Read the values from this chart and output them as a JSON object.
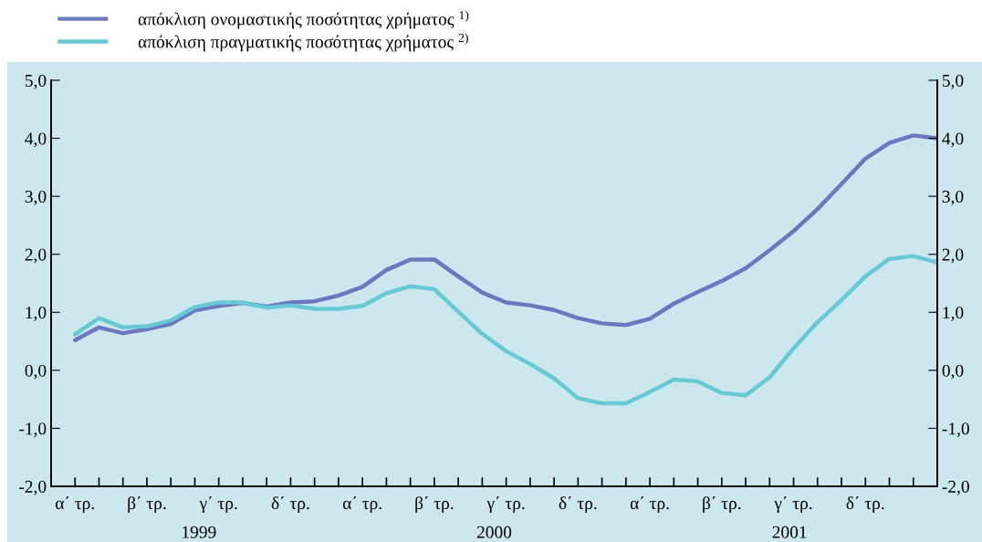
{
  "chart_data": {
    "type": "line",
    "categories": [
      "α΄ τρ.",
      null,
      null,
      "β΄ τρ.",
      null,
      null,
      "γ΄ τρ.",
      null,
      null,
      "δ΄ τρ.",
      null,
      null,
      "α΄ τρ.",
      null,
      null,
      "β΄ τρ.",
      null,
      null,
      "γ΄ τρ.",
      null,
      null,
      "δ΄ τρ.",
      null,
      null,
      "α΄ τρ.",
      null,
      null,
      "β΄ τρ.",
      null,
      null,
      "γ΄ τρ.",
      null,
      null,
      "δ΄ τρ.",
      null,
      null,
      null
    ],
    "series": [
      {
        "name": "απόκλιση ονομαστικής ποσότητας χρήματος $^{1)}$",
        "color": "#6b78bf",
        "values": [
          0.52,
          0.74,
          0.64,
          0.71,
          0.8,
          1.03,
          1.11,
          1.16,
          1.1,
          1.17,
          1.19,
          1.29,
          1.44,
          1.73,
          1.91,
          1.91,
          1.62,
          1.34,
          1.17,
          1.12,
          1.04,
          0.9,
          0.81,
          0.78,
          0.89,
          1.15,
          1.35,
          1.54,
          1.76,
          2.07,
          2.4,
          2.78,
          3.21,
          3.65,
          3.92,
          4.05,
          4.0
        ]
      },
      {
        "name": "απόκλιση πραγματικής ποσότητας χρήματος $^{2)}$",
        "color": "#66c9d4",
        "values": [
          0.62,
          0.9,
          0.74,
          0.76,
          0.86,
          1.09,
          1.17,
          1.17,
          1.08,
          1.12,
          1.06,
          1.06,
          1.11,
          1.33,
          1.45,
          1.4,
          1.01,
          0.63,
          0.33,
          0.11,
          -0.14,
          -0.48,
          -0.57,
          -0.57,
          -0.37,
          -0.16,
          -0.19,
          -0.39,
          -0.43,
          -0.12,
          0.38,
          0.83,
          1.21,
          1.62,
          1.92,
          1.97,
          1.86
        ]
      }
    ],
    "ylim": [
      -2,
      5
    ],
    "yticks": [
      {
        "value": -2,
        "label": "-2,0"
      },
      {
        "value": -1,
        "label": "-1,0"
      },
      {
        "value": 0,
        "label": "0,0"
      },
      {
        "value": 1,
        "label": "1,0"
      },
      {
        "value": 2,
        "label": "2,0"
      },
      {
        "value": 3,
        "label": "3,0"
      },
      {
        "value": 4,
        "label": "4,0"
      },
      {
        "value": 5,
        "label": "5,0"
      }
    ],
    "y2lim": [
      -2,
      5
    ],
    "y2ticks": [
      {
        "value": -2,
        "label": "-2,0"
      },
      {
        "value": -1,
        "label": "-1,0"
      },
      {
        "value": 0,
        "label": "0,0"
      },
      {
        "value": 1,
        "label": "1,0"
      },
      {
        "value": 2,
        "label": "2,0"
      },
      {
        "value": 3,
        "label": "3,0"
      },
      {
        "value": 4,
        "label": "4,0"
      },
      {
        "value": 5,
        "label": "5,0"
      }
    ],
    "annotations": [
      "1999",
      "2000",
      "2001"
    ],
    "legend": "top left",
    "grid": false,
    "marker": "none",
    "line_style": "solid"
  }
}
